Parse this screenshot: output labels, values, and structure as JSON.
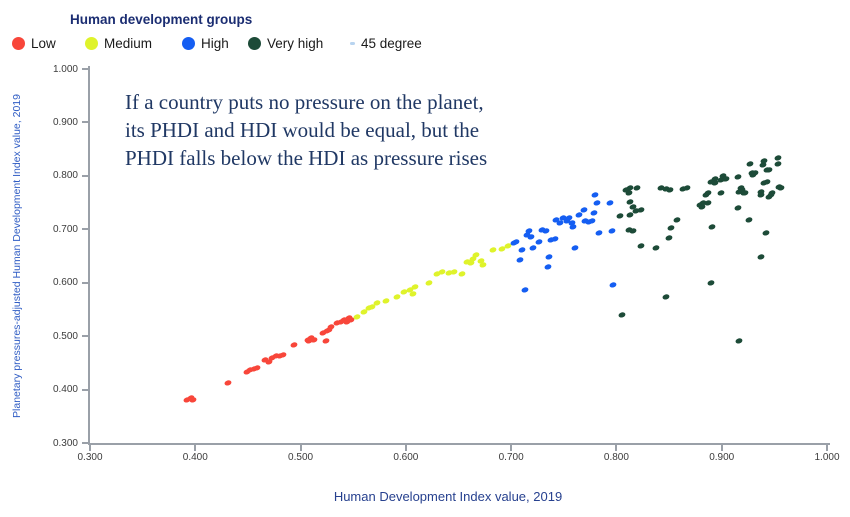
{
  "legend": {
    "title": "Human development groups",
    "items": [
      {
        "label": "Low",
        "color": "#f8463a",
        "marker": "dot"
      },
      {
        "label": "Medium",
        "color": "#dff32b",
        "marker": "dot"
      },
      {
        "label": "High",
        "color": "#155ef2",
        "marker": "dot"
      },
      {
        "label": "Very high",
        "color": "#1d4b38",
        "marker": "dot"
      },
      {
        "label": "45 degree",
        "color": "#b8d4f0",
        "marker": "dash"
      }
    ]
  },
  "annotation": {
    "line1": "If a country puts no pressure on the planet,",
    "line2": "its PHDI and HDI would be equal, but the",
    "line3": "PHDI falls below the HDI as pressure rises"
  },
  "chart_data": {
    "type": "scatter",
    "title": "",
    "xlabel": "Human Development Index value, 2019",
    "ylabel": "Planetary pressures-adjusted Human Development Index value, 2019",
    "xlim": [
      0.3,
      1.0
    ],
    "ylim": [
      0.3,
      1.0
    ],
    "x_tick_labels": [
      "0.300",
      "0.400",
      "0.500",
      "0.600",
      "0.700",
      "0.800",
      "0.900",
      "1.000"
    ],
    "y_tick_labels": [
      "0.300",
      "0.400",
      "0.500",
      "0.600",
      "0.700",
      "0.800",
      "0.900",
      "1.000"
    ],
    "grid": false,
    "legend_position": "top-left",
    "series": [
      {
        "name": "Low",
        "color": "#f8463a",
        "points": [
          [
            0.392,
            0.381
          ],
          [
            0.396,
            0.384
          ],
          [
            0.398,
            0.38
          ],
          [
            0.431,
            0.413
          ],
          [
            0.449,
            0.433
          ],
          [
            0.452,
            0.437
          ],
          [
            0.456,
            0.438
          ],
          [
            0.459,
            0.44
          ],
          [
            0.466,
            0.456
          ],
          [
            0.47,
            0.452
          ],
          [
            0.473,
            0.459
          ],
          [
            0.477,
            0.462
          ],
          [
            0.48,
            0.463
          ],
          [
            0.483,
            0.464
          ],
          [
            0.494,
            0.484
          ],
          [
            0.507,
            0.493
          ],
          [
            0.508,
            0.49
          ],
          [
            0.51,
            0.496
          ],
          [
            0.513,
            0.493
          ],
          [
            0.521,
            0.506
          ],
          [
            0.524,
            0.49
          ],
          [
            0.525,
            0.509
          ],
          [
            0.527,
            0.512
          ],
          [
            0.529,
            0.518
          ],
          [
            0.535,
            0.524
          ],
          [
            0.538,
            0.527
          ],
          [
            0.541,
            0.531
          ],
          [
            0.544,
            0.527
          ],
          [
            0.546,
            0.534
          ],
          [
            0.548,
            0.531
          ]
        ]
      },
      {
        "name": "Medium",
        "color": "#dff32b",
        "points": [
          [
            0.554,
            0.535
          ],
          [
            0.56,
            0.546
          ],
          [
            0.565,
            0.552
          ],
          [
            0.568,
            0.555
          ],
          [
            0.573,
            0.562
          ],
          [
            0.581,
            0.565
          ],
          [
            0.592,
            0.574
          ],
          [
            0.598,
            0.583
          ],
          [
            0.604,
            0.587
          ],
          [
            0.607,
            0.579
          ],
          [
            0.609,
            0.592
          ],
          [
            0.622,
            0.6
          ],
          [
            0.63,
            0.617
          ],
          [
            0.634,
            0.62
          ],
          [
            0.641,
            0.618
          ],
          [
            0.646,
            0.62
          ],
          [
            0.653,
            0.617
          ],
          [
            0.658,
            0.638
          ],
          [
            0.662,
            0.637
          ],
          [
            0.664,
            0.644
          ],
          [
            0.667,
            0.652
          ],
          [
            0.671,
            0.64
          ],
          [
            0.673,
            0.633
          ],
          [
            0.683,
            0.661
          ],
          [
            0.691,
            0.663
          ],
          [
            0.697,
            0.668
          ]
        ]
      },
      {
        "name": "High",
        "color": "#155ef2",
        "points": [
          [
            0.703,
            0.674
          ],
          [
            0.705,
            0.677
          ],
          [
            0.708,
            0.643
          ],
          [
            0.71,
            0.661
          ],
          [
            0.713,
            0.587
          ],
          [
            0.715,
            0.689
          ],
          [
            0.717,
            0.696
          ],
          [
            0.719,
            0.686
          ],
          [
            0.721,
            0.665
          ],
          [
            0.726,
            0.677
          ],
          [
            0.729,
            0.699
          ],
          [
            0.733,
            0.696
          ],
          [
            0.735,
            0.63
          ],
          [
            0.736,
            0.649
          ],
          [
            0.738,
            0.68
          ],
          [
            0.742,
            0.681
          ],
          [
            0.743,
            0.717
          ],
          [
            0.746,
            0.711
          ],
          [
            0.749,
            0.721
          ],
          [
            0.753,
            0.716
          ],
          [
            0.755,
            0.722
          ],
          [
            0.758,
            0.712
          ],
          [
            0.759,
            0.705
          ],
          [
            0.761,
            0.665
          ],
          [
            0.764,
            0.727
          ],
          [
            0.769,
            0.736
          ],
          [
            0.77,
            0.716
          ],
          [
            0.774,
            0.714
          ],
          [
            0.777,
            0.716
          ],
          [
            0.779,
            0.73
          ],
          [
            0.78,
            0.764
          ],
          [
            0.782,
            0.749
          ],
          [
            0.783,
            0.693
          ],
          [
            0.794,
            0.749
          ],
          [
            0.796,
            0.696
          ],
          [
            0.797,
            0.596
          ]
        ]
      },
      {
        "name": "Very high",
        "color": "#1d4b38",
        "points": [
          [
            0.803,
            0.724
          ],
          [
            0.805,
            0.54
          ],
          [
            0.809,
            0.774
          ],
          [
            0.812,
            0.767
          ],
          [
            0.812,
            0.699
          ],
          [
            0.813,
            0.777
          ],
          [
            0.813,
            0.752
          ],
          [
            0.813,
            0.727
          ],
          [
            0.816,
            0.742
          ],
          [
            0.816,
            0.697
          ],
          [
            0.819,
            0.734
          ],
          [
            0.82,
            0.777
          ],
          [
            0.823,
            0.737
          ],
          [
            0.823,
            0.668
          ],
          [
            0.838,
            0.665
          ],
          [
            0.842,
            0.777
          ],
          [
            0.847,
            0.775
          ],
          [
            0.847,
            0.574
          ],
          [
            0.85,
            0.683
          ],
          [
            0.851,
            0.773
          ],
          [
            0.852,
            0.702
          ],
          [
            0.858,
            0.717
          ],
          [
            0.863,
            0.775
          ],
          [
            0.867,
            0.778
          ],
          [
            0.879,
            0.746
          ],
          [
            0.881,
            0.742
          ],
          [
            0.882,
            0.749
          ],
          [
            0.885,
            0.764
          ],
          [
            0.887,
            0.767
          ],
          [
            0.887,
            0.749
          ],
          [
            0.89,
            0.789
          ],
          [
            0.89,
            0.599
          ],
          [
            0.891,
            0.705
          ],
          [
            0.894,
            0.795
          ],
          [
            0.894,
            0.786
          ],
          [
            0.899,
            0.792
          ],
          [
            0.899,
            0.767
          ],
          [
            0.901,
            0.8
          ],
          [
            0.903,
            0.795
          ],
          [
            0.904,
            0.795
          ],
          [
            0.915,
            0.798
          ],
          [
            0.915,
            0.739
          ],
          [
            0.916,
            0.77
          ],
          [
            0.916,
            0.49
          ],
          [
            0.918,
            0.777
          ],
          [
            0.919,
            0.774
          ],
          [
            0.921,
            0.767
          ],
          [
            0.922,
            0.767
          ],
          [
            0.926,
            0.717
          ],
          [
            0.927,
            0.823
          ],
          [
            0.929,
            0.805
          ],
          [
            0.93,
            0.802
          ],
          [
            0.932,
            0.805
          ],
          [
            0.937,
            0.77
          ],
          [
            0.937,
            0.764
          ],
          [
            0.937,
            0.649
          ],
          [
            0.939,
            0.82
          ],
          [
            0.94,
            0.827
          ],
          [
            0.94,
            0.786
          ],
          [
            0.942,
            0.693
          ],
          [
            0.943,
            0.811
          ],
          [
            0.943,
            0.789
          ],
          [
            0.945,
            0.811
          ],
          [
            0.945,
            0.761
          ],
          [
            0.947,
            0.764
          ],
          [
            0.948,
            0.767
          ],
          [
            0.953,
            0.833
          ],
          [
            0.953,
            0.822
          ],
          [
            0.954,
            0.78
          ],
          [
            0.956,
            0.777
          ]
        ]
      }
    ]
  },
  "colors": {
    "legend_title": "#1b2d72",
    "annotation_text": "#203864",
    "axis": "#9aa0a8",
    "tick_label": "#3c3c3c",
    "y_axis_title": "#2f5cc4",
    "x_axis_title": "#27418f"
  }
}
